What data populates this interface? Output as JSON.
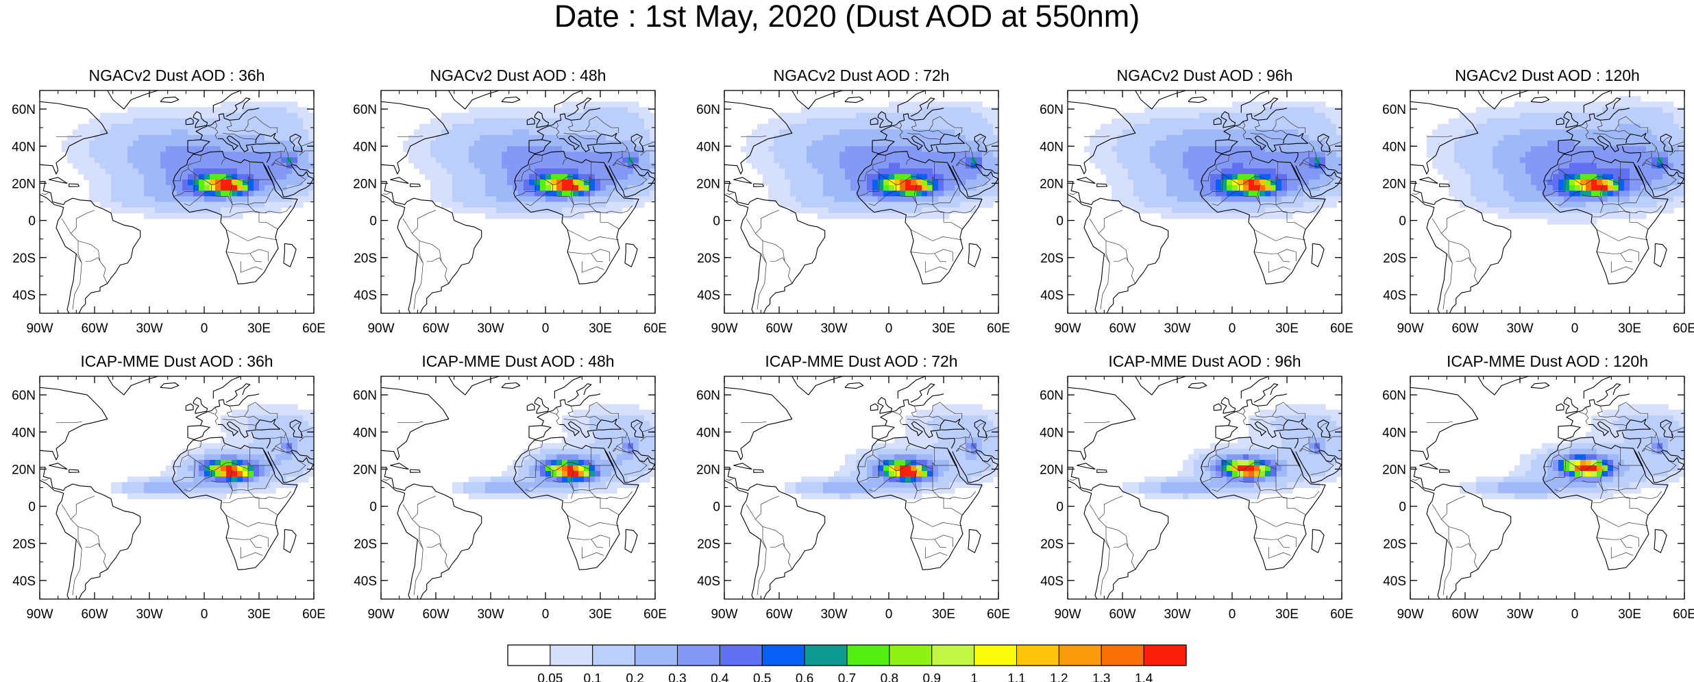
{
  "title": "Date : 1st May, 2020 (Dust AOD at 550nm)",
  "panels": [
    {
      "title": "NGACv2 Dust AOD : 36h",
      "model": "NGACv2",
      "lead": "36h",
      "spread": 1.0,
      "plumeLon": 0,
      "coreShiftLon": 0,
      "coreShiftLat": 0,
      "peak": 1.45
    },
    {
      "title": "NGACv2 Dust AOD : 48h",
      "model": "NGACv2",
      "lead": "48h",
      "spread": 1.0,
      "plumeLon": 0,
      "coreShiftLon": 0,
      "coreShiftLat": 0,
      "peak": 1.4
    },
    {
      "title": "NGACv2 Dust AOD : 72h",
      "model": "NGACv2",
      "lead": "72h",
      "spread": 1.05,
      "plumeLon": 0,
      "coreShiftLon": 0,
      "coreShiftLat": 0,
      "peak": 1.25
    },
    {
      "title": "NGACv2 Dust AOD : 96h",
      "model": "NGACv2",
      "lead": "96h",
      "spread": 1.05,
      "plumeLon": 0,
      "coreShiftLon": 0,
      "coreShiftLat": 0,
      "peak": 1.2
    },
    {
      "title": "NGACv2 Dust AOD : 120h",
      "model": "NGACv2",
      "lead": "120h",
      "spread": 1.08,
      "plumeLon": 0,
      "coreShiftLon": 0,
      "coreShiftLat": 0,
      "peak": 1.3
    },
    {
      "title": "ICAP-MME Dust AOD : 36h",
      "model": "ICAP-MME",
      "lead": "36h",
      "spread": 0.85,
      "plumeLon": 2,
      "coreShiftLon": 3,
      "coreShiftLat": 0,
      "peak": 1.2
    },
    {
      "title": "ICAP-MME Dust AOD : 48h",
      "model": "ICAP-MME",
      "lead": "48h",
      "spread": 0.85,
      "plumeLon": 2,
      "coreShiftLon": 2,
      "coreShiftLat": 0,
      "peak": 1.25
    },
    {
      "title": "ICAP-MME Dust AOD : 72h",
      "model": "ICAP-MME",
      "lead": "72h",
      "spread": 0.9,
      "plumeLon": -2,
      "coreShiftLon": -2,
      "coreShiftLat": 0,
      "peak": 1.3
    },
    {
      "title": "ICAP-MME Dust AOD : 96h",
      "model": "ICAP-MME",
      "lead": "96h",
      "spread": 0.9,
      "plumeLon": -4,
      "coreShiftLon": -3,
      "coreShiftLat": 1,
      "peak": 1.3
    },
    {
      "title": "ICAP-MME Dust AOD : 120h",
      "model": "ICAP-MME",
      "lead": "120h",
      "spread": 0.95,
      "plumeLon": -6,
      "coreShiftLon": -5,
      "coreShiftLat": 2,
      "peak": 1.45
    }
  ],
  "map_extent": {
    "lon": [
      -90,
      60
    ],
    "lat": [
      -50,
      70
    ]
  },
  "x_ticks": [
    {
      "value": -90,
      "label": "90W"
    },
    {
      "value": -60,
      "label": "60W"
    },
    {
      "value": -30,
      "label": "30W"
    },
    {
      "value": 0,
      "label": "0"
    },
    {
      "value": 30,
      "label": "30E"
    },
    {
      "value": 60,
      "label": "60E"
    }
  ],
  "y_ticks": [
    {
      "value": 60,
      "label": "60N"
    },
    {
      "value": 40,
      "label": "40N"
    },
    {
      "value": 20,
      "label": "20N"
    },
    {
      "value": 0,
      "label": "0"
    },
    {
      "value": -20,
      "label": "20S"
    },
    {
      "value": -40,
      "label": "40S"
    }
  ],
  "colorbar": {
    "levels": [
      "0.05",
      "0.1",
      "0.2",
      "0.3",
      "0.4",
      "0.5",
      "0.6",
      "0.7",
      "0.8",
      "0.9",
      "1",
      "1.1",
      "1.2",
      "1.3",
      "1.4"
    ],
    "level_values": [
      0.05,
      0.1,
      0.2,
      0.3,
      0.4,
      0.5,
      0.6,
      0.7,
      0.8,
      0.9,
      1.0,
      1.1,
      1.2,
      1.3,
      1.4
    ],
    "colors": [
      "#ffffff",
      "#d6e0fc",
      "#bccefa",
      "#9fb8f8",
      "#8499f5",
      "#6070f0",
      "#0a5ff5",
      "#109a94",
      "#55ee14",
      "#90f214",
      "#c2f545",
      "#fafa0a",
      "#fbc30c",
      "#fa9a0c",
      "#fa7008",
      "#fa200c"
    ]
  },
  "colors": {
    "coast": "#000000",
    "frame": "#000000"
  }
}
